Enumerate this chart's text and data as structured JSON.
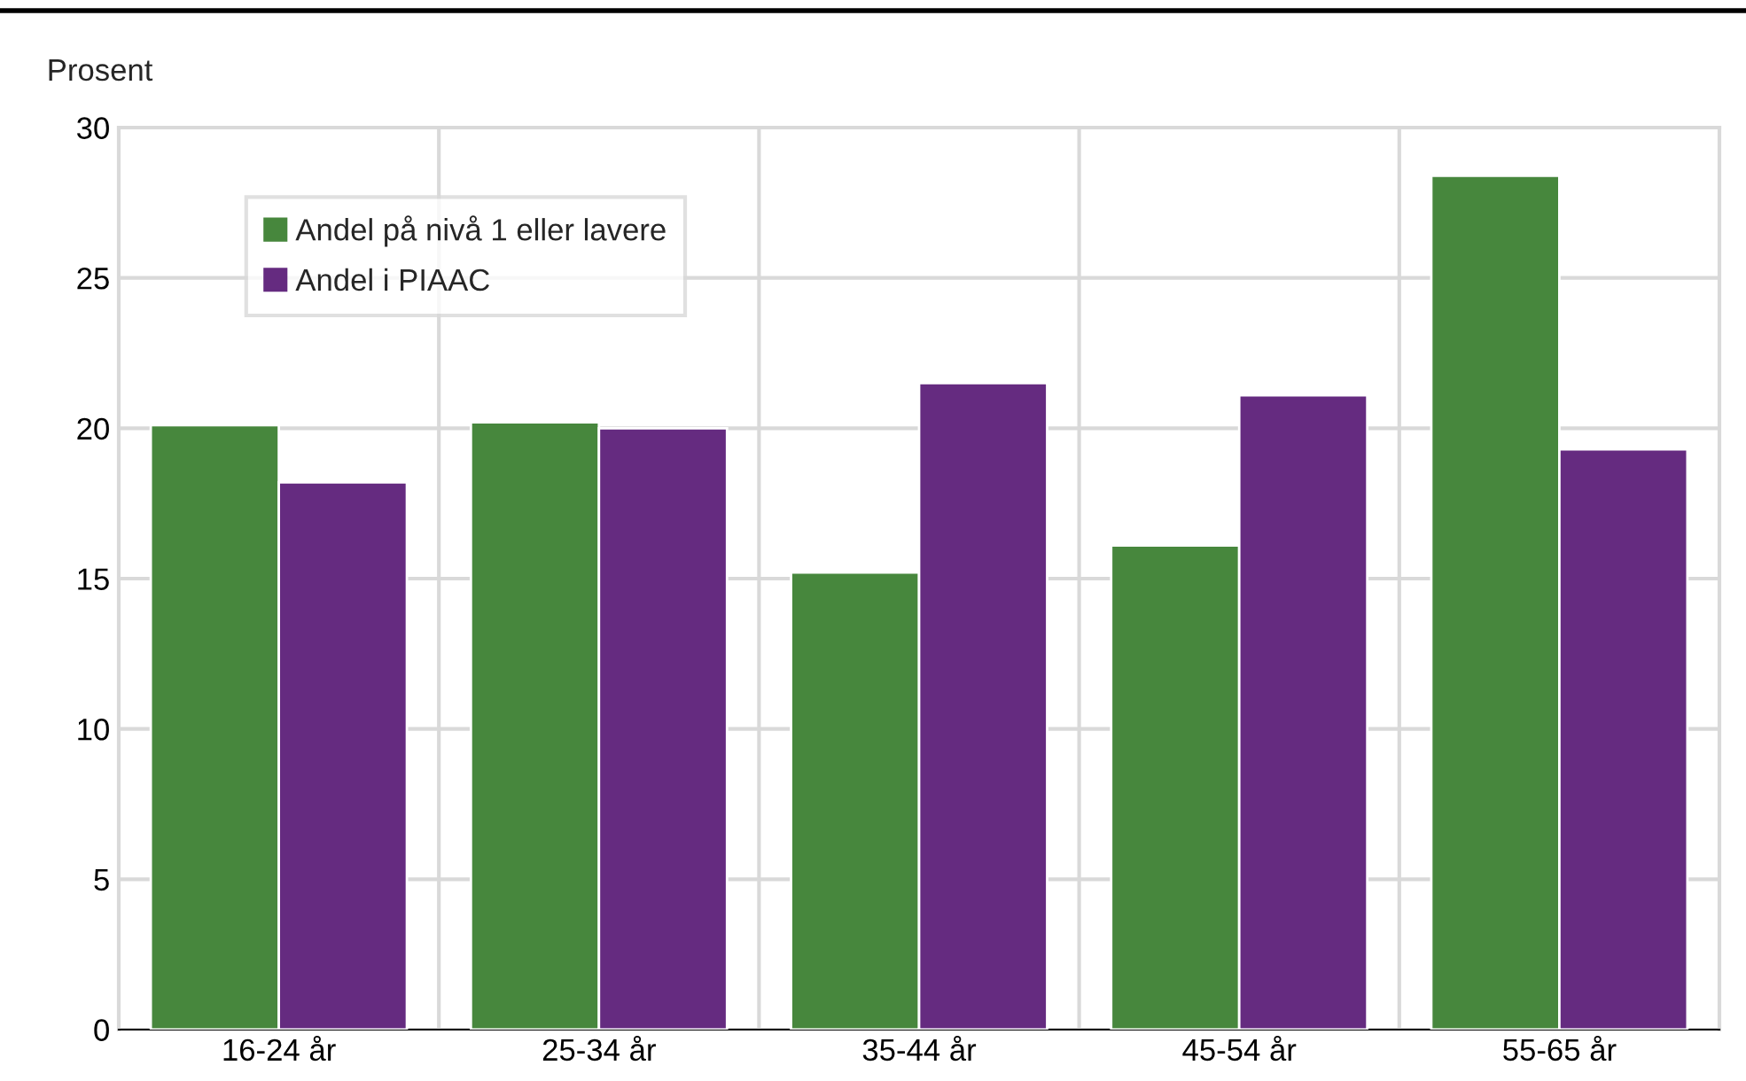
{
  "chart_data": {
    "type": "bar",
    "ylabel": "Prosent",
    "categories": [
      "16-24 år",
      "25-34 år",
      "35-44 år",
      "45-54 år",
      "55-65 år"
    ],
    "series": [
      {
        "name": "Andel på nivå 1 eller lavere",
        "color": "#47873d",
        "values": [
          20.1,
          20.2,
          15.2,
          16.1,
          28.4
        ]
      },
      {
        "name": "Andel i PIAAC",
        "color": "#652b80",
        "values": [
          18.2,
          20.0,
          21.5,
          21.1,
          19.3
        ]
      }
    ],
    "ylim": [
      0,
      30
    ],
    "yticks": [
      0,
      5,
      10,
      15,
      20,
      25,
      30
    ],
    "grid": true,
    "legend": "top left"
  }
}
